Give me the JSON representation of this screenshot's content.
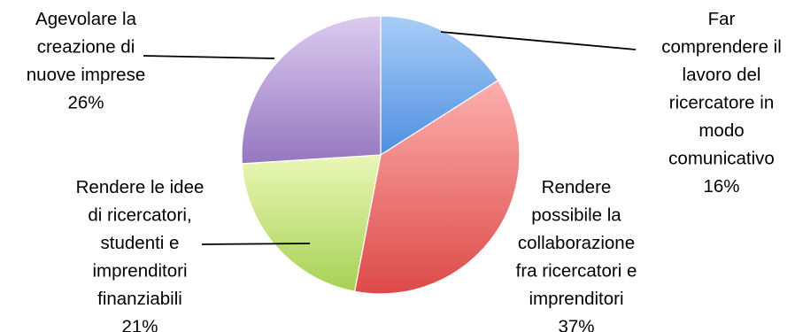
{
  "chart_data": {
    "type": "pie",
    "title": "",
    "slices": [
      {
        "label_lines": [
          "Far",
          "comprendere il",
          "lavoro del",
          "ricercatore in",
          "modo",
          "comunicativo"
        ],
        "percent_label": "16%",
        "value": 16,
        "colors": {
          "light": "#a9cdf7",
          "dark": "#4f8fe0"
        }
      },
      {
        "label_lines": [
          "Rendere",
          "possibile la",
          "collaborazione",
          "fra ricercatori e",
          "imprenditori"
        ],
        "percent_label": "37%",
        "value": 37,
        "colors": {
          "light": "#fcb0ae",
          "dark": "#dd4a48"
        }
      },
      {
        "label_lines": [
          "Rendere le idee",
          "di ricercatori,",
          "studenti e",
          "imprenditori",
          "finanziabili"
        ],
        "percent_label": "21%",
        "value": 21,
        "colors": {
          "light": "#eaf7b6",
          "dark": "#a7d155"
        }
      },
      {
        "label_lines": [
          "Agevolare la",
          "creazione di",
          "nuove imprese"
        ],
        "percent_label": "26%",
        "value": 26,
        "colors": {
          "light": "#dccbef",
          "dark": "#9577c0"
        }
      }
    ]
  }
}
